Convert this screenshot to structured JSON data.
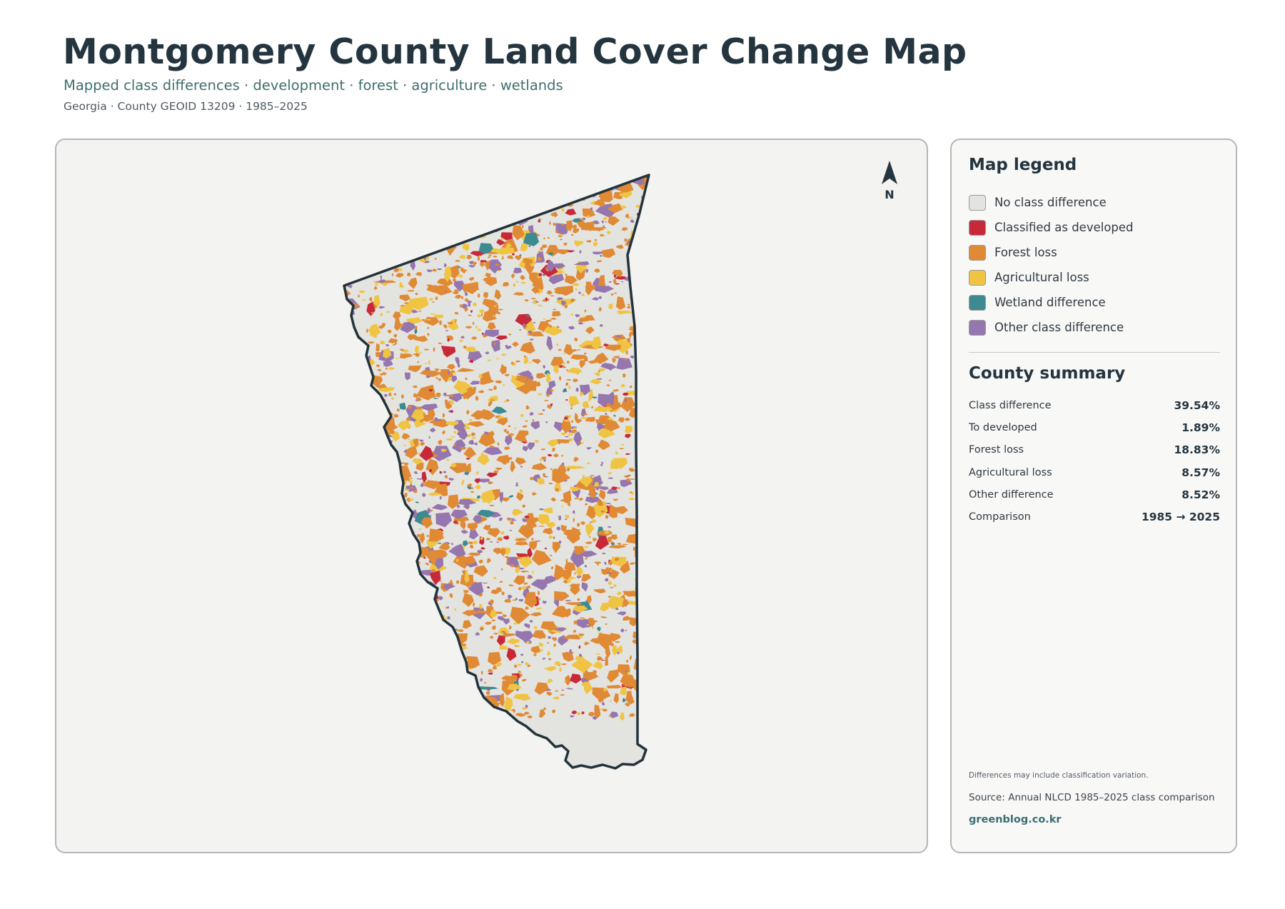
{
  "header": {
    "title": "Montgomery County Land Cover Change Map",
    "subtitle": "Mapped class differences · development · forest · agriculture · wetlands",
    "meta": "Georgia · County GEOID 13209 · 1985–2025"
  },
  "map": {
    "north_label": "N",
    "north_icon": "north-arrow-icon",
    "outline_color": "#22333b",
    "background_color": "#e3e3e0"
  },
  "legend": {
    "title": "Map legend",
    "items": [
      {
        "label": "No class difference",
        "color": "#e3e3e0"
      },
      {
        "label": "Classified as developed",
        "color": "#c8293a"
      },
      {
        "label": "Forest loss",
        "color": "#e08a35"
      },
      {
        "label": "Agricultural loss",
        "color": "#f0c443"
      },
      {
        "label": "Wetland difference",
        "color": "#3d8a91"
      },
      {
        "label": "Other class difference",
        "color": "#9676ae"
      }
    ]
  },
  "summary": {
    "title": "County summary",
    "rows": [
      {
        "label": "Class difference",
        "value": "39.54%"
      },
      {
        "label": "To developed",
        "value": "1.89%"
      },
      {
        "label": "Forest loss",
        "value": "18.83%"
      },
      {
        "label": "Agricultural loss",
        "value": "8.57%"
      },
      {
        "label": "Other difference",
        "value": "8.52%"
      },
      {
        "label": "Comparison",
        "value": "1985 → 2025"
      }
    ]
  },
  "footer": {
    "note": "Differences may include classification variation.",
    "source": "Source: Annual NLCD 1985–2025 class comparison",
    "credit": "greenblog.co.kr"
  }
}
